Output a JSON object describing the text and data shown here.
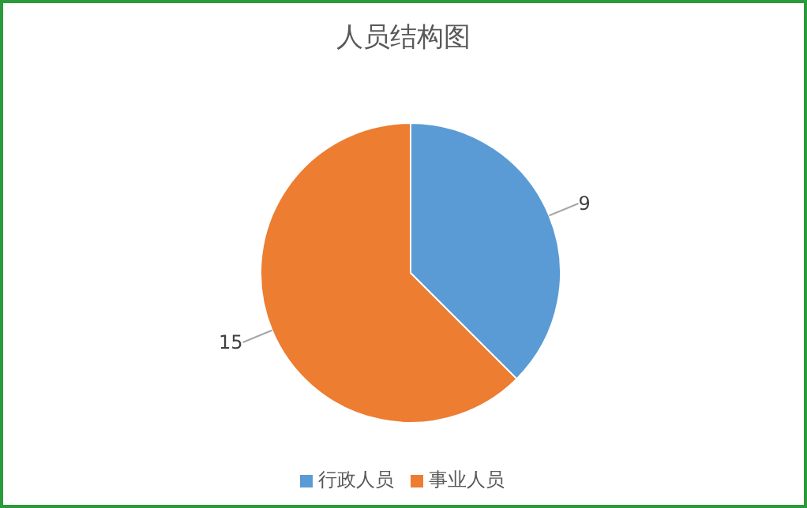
{
  "chart_data": {
    "type": "pie",
    "title": "人员结构图",
    "categories": [
      "行政人员",
      "事业人员"
    ],
    "values": [
      9,
      15
    ],
    "colors": [
      "#5b9bd5",
      "#ed7d31"
    ],
    "data_labels": true,
    "legend": "bottom"
  }
}
